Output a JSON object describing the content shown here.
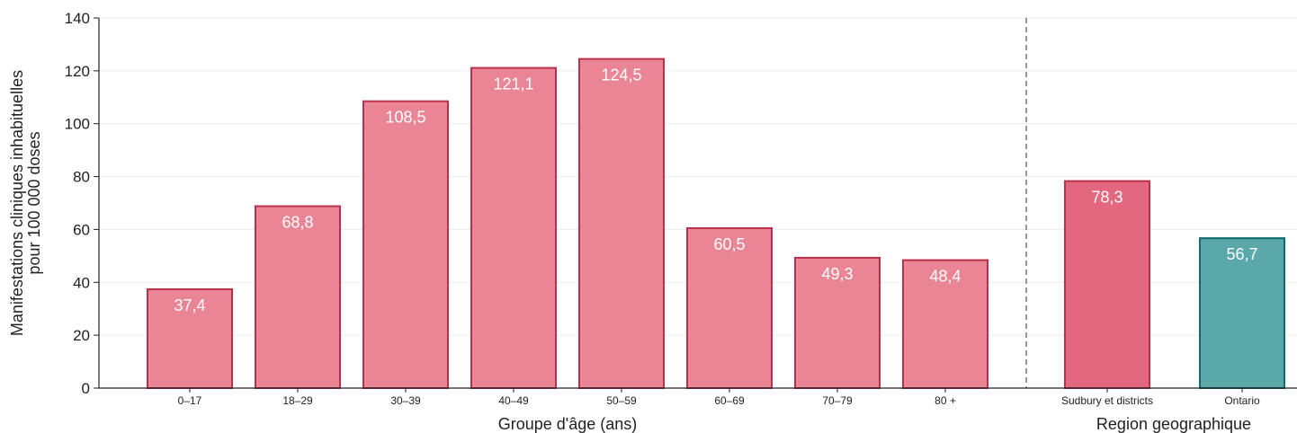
{
  "chart_data": {
    "type": "bar",
    "ylabel_line1": "Manifestations cliniques inhabituelles",
    "ylabel_line2": "pour 100 000 doses",
    "ylim": [
      0,
      140
    ],
    "yticks": [
      0,
      20,
      40,
      60,
      80,
      100,
      120,
      140
    ],
    "grid": true,
    "groups": [
      {
        "xlabel": "Groupe d'âge (ans)",
        "categories": [
          "0–17",
          "18–29",
          "30–39",
          "40–49",
          "50–59",
          "60–69",
          "70–79",
          "80 +"
        ],
        "values": [
          37.4,
          68.8,
          108.5,
          121.1,
          124.5,
          60.5,
          49.3,
          48.4
        ],
        "value_labels": [
          "37,4",
          "68,8",
          "108,5",
          "121,1",
          "124,5",
          "60,5",
          "49,3",
          "48,4"
        ],
        "fill": "#e98595",
        "stroke": "#b8304c"
      },
      {
        "xlabel": "Region geographique",
        "categories": [
          "Sudbury et districts",
          "Ontario"
        ],
        "values": [
          78.3,
          56.7
        ],
        "value_labels": [
          "78,3",
          "56,7"
        ],
        "fills": [
          "#e3687f",
          "#5ba8aa"
        ],
        "strokes": [
          "#b8304c",
          "#0f6b67"
        ]
      }
    ],
    "colors": {
      "grid": "#ececec",
      "axis": "#222222",
      "divider": "#777777"
    }
  }
}
